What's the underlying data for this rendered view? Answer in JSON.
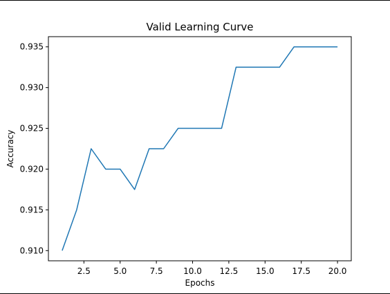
{
  "chart_data": {
    "type": "line",
    "title": "Valid Learning Curve",
    "xlabel": "Epochs",
    "ylabel": "Accuracy",
    "xlim": [
      0.05,
      20.95
    ],
    "ylim": [
      0.90875,
      0.93625
    ],
    "x_ticks": [
      2.5,
      5.0,
      7.5,
      10.0,
      12.5,
      15.0,
      17.5,
      20.0
    ],
    "x_tick_labels": [
      "2.5",
      "5.0",
      "7.5",
      "10.0",
      "12.5",
      "15.0",
      "17.5",
      "20.0"
    ],
    "y_ticks": [
      0.91,
      0.915,
      0.92,
      0.925,
      0.93,
      0.935
    ],
    "y_tick_labels": [
      "0.910",
      "0.915",
      "0.920",
      "0.925",
      "0.930",
      "0.935"
    ],
    "grid": false,
    "series": [
      {
        "color": "#1f77b4",
        "x": [
          1,
          2,
          3,
          4,
          5,
          6,
          7,
          8,
          9,
          10,
          11,
          12,
          13,
          14,
          15,
          16,
          17,
          18,
          19,
          20
        ],
        "y": [
          0.91,
          0.915,
          0.9225,
          0.92,
          0.92,
          0.9175,
          0.9225,
          0.9225,
          0.925,
          0.925,
          0.925,
          0.925,
          0.9325,
          0.9325,
          0.9325,
          0.9325,
          0.935,
          0.935,
          0.935,
          0.935
        ]
      }
    ]
  }
}
